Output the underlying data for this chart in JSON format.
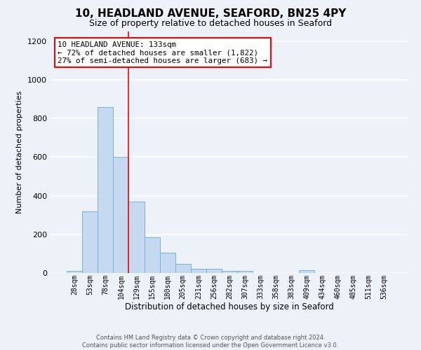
{
  "title1": "10, HEADLAND AVENUE, SEAFORD, BN25 4PY",
  "title2": "Size of property relative to detached houses in Seaford",
  "xlabel": "Distribution of detached houses by size in Seaford",
  "ylabel": "Number of detached properties",
  "bar_labels": [
    "28sqm",
    "53sqm",
    "78sqm",
    "104sqm",
    "129sqm",
    "155sqm",
    "180sqm",
    "205sqm",
    "231sqm",
    "256sqm",
    "282sqm",
    "307sqm",
    "333sqm",
    "358sqm",
    "383sqm",
    "409sqm",
    "434sqm",
    "460sqm",
    "485sqm",
    "511sqm",
    "536sqm"
  ],
  "bar_values": [
    10,
    320,
    860,
    600,
    370,
    185,
    105,
    47,
    20,
    20,
    10,
    10,
    0,
    0,
    0,
    15,
    0,
    0,
    0,
    0,
    0
  ],
  "bar_color": "#c5d9f1",
  "bar_edgecolor": "#7bafd4",
  "vline_index": 4,
  "vline_color": "red",
  "ylim": [
    0,
    1250
  ],
  "yticks": [
    0,
    200,
    400,
    600,
    800,
    1000,
    1200
  ],
  "annotation_title": "10 HEADLAND AVENUE: 133sqm",
  "annotation_line1": "← 72% of detached houses are smaller (1,822)",
  "annotation_line2": "27% of semi-detached houses are larger (683) →",
  "annotation_box_color": "white",
  "annotation_box_edgecolor": "red",
  "footer1": "Contains HM Land Registry data © Crown copyright and database right 2024.",
  "footer2": "Contains public sector information licensed under the Open Government Licence v3.0.",
  "bg_color": "#edf2f9",
  "grid_color": "white",
  "title1_fontsize": 11,
  "title2_fontsize": 9,
  "ylabel_fontsize": 8,
  "xlabel_fontsize": 8.5,
  "ytick_fontsize": 8,
  "xtick_fontsize": 7
}
